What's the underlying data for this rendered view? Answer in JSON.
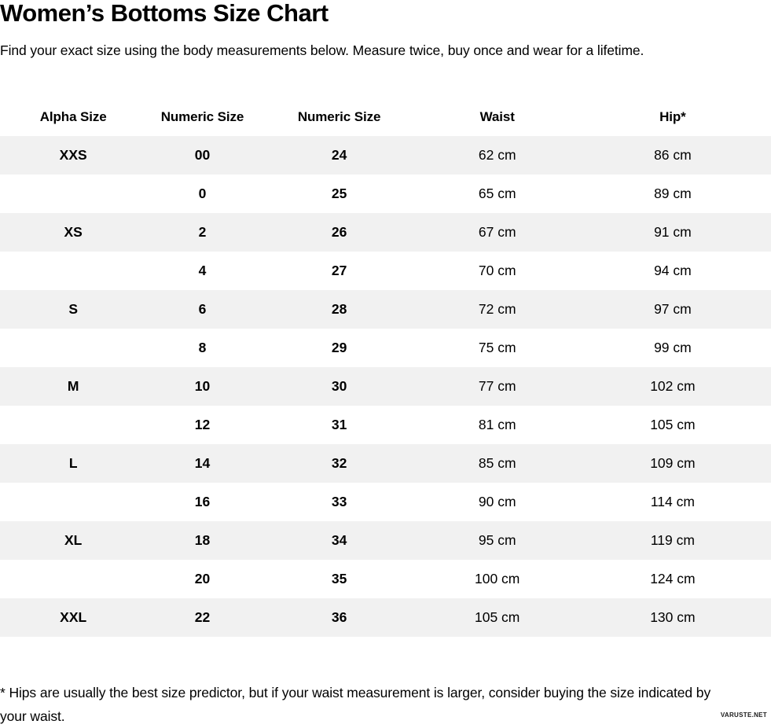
{
  "page": {
    "title": "Women’s Bottoms Size Chart",
    "subtitle": "Find your exact size using the body measurements below. Measure twice, buy once and wear for a lifetime.",
    "footnote": "* Hips are usually the best size predictor, but if your waist measurement is larger, consider buying the size indicated by your waist.",
    "watermark": "VARUSTE.NET"
  },
  "colors": {
    "stripe": "#f1f1f1",
    "text": "#000000",
    "background": "#ffffff"
  },
  "table": {
    "columns": [
      "Alpha Size",
      "Numeric Size",
      "Numeric Size",
      "Waist",
      "Hip*"
    ],
    "bold_columns": [
      0,
      1,
      2
    ],
    "rows": [
      [
        "XXS",
        "00",
        "24",
        "62 cm",
        "86 cm"
      ],
      [
        "",
        "0",
        "25",
        "65 cm",
        "89 cm"
      ],
      [
        "XS",
        "2",
        "26",
        "67 cm",
        "91 cm"
      ],
      [
        "",
        "4",
        "27",
        "70 cm",
        "94 cm"
      ],
      [
        "S",
        "6",
        "28",
        "72 cm",
        "97 cm"
      ],
      [
        "",
        "8",
        "29",
        "75 cm",
        "99 cm"
      ],
      [
        "M",
        "10",
        "30",
        "77 cm",
        "102 cm"
      ],
      [
        "",
        "12",
        "31",
        "81 cm",
        "105 cm"
      ],
      [
        "L",
        "14",
        "32",
        "85 cm",
        "109 cm"
      ],
      [
        "",
        "16",
        "33",
        "90 cm",
        "114 cm"
      ],
      [
        "XL",
        "18",
        "34",
        "95 cm",
        "119 cm"
      ],
      [
        "",
        "20",
        "35",
        "100 cm",
        "124 cm"
      ],
      [
        "XXL",
        "22",
        "36",
        "105 cm",
        "130 cm"
      ]
    ]
  }
}
